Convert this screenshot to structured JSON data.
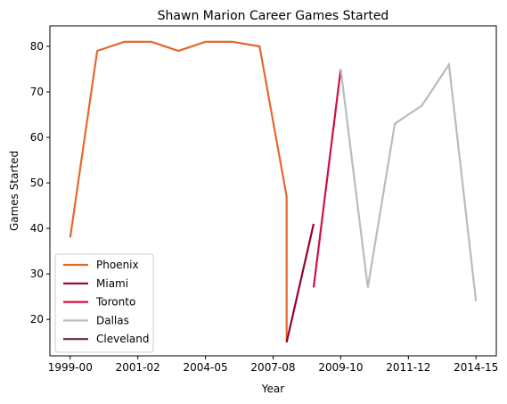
{
  "chart_data": {
    "type": "line",
    "title": "Shawn Marion Career Games Started",
    "xlabel": "Year",
    "ylabel": "Games Started",
    "xlim": [
      -0.75,
      15.75
    ],
    "ylim": [
      12,
      84.5
    ],
    "x_ticks": [
      {
        "x": 0,
        "label": "1999-00"
      },
      {
        "x": 2.5,
        "label": "2001-02"
      },
      {
        "x": 5,
        "label": "2004-05"
      },
      {
        "x": 7.5,
        "label": "2007-08"
      },
      {
        "x": 10,
        "label": "2009-10"
      },
      {
        "x": 12.5,
        "label": "2011-12"
      },
      {
        "x": 15,
        "label": "2014-15"
      }
    ],
    "y_ticks": [
      20,
      30,
      40,
      50,
      60,
      70,
      80
    ],
    "grid": false,
    "legend_position": "lower-left",
    "series": [
      {
        "name": "Phoenix",
        "color": "#E4692B",
        "points": [
          [
            0,
            38
          ],
          [
            1,
            79
          ],
          [
            2,
            81
          ],
          [
            3,
            81
          ],
          [
            4,
            79
          ],
          [
            5,
            81
          ],
          [
            6,
            81
          ],
          [
            7,
            80
          ],
          [
            8,
            47
          ],
          [
            8,
            15
          ]
        ]
      },
      {
        "name": "Miami",
        "color": "#98002E",
        "points": [
          [
            8,
            15
          ],
          [
            9,
            41
          ]
        ]
      },
      {
        "name": "Toronto",
        "color": "#CE1141",
        "points": [
          [
            9,
            27
          ],
          [
            10,
            75
          ]
        ]
      },
      {
        "name": "Dallas",
        "color": "#BBBBBB",
        "points": [
          [
            10,
            75
          ],
          [
            11,
            27
          ],
          [
            12,
            63
          ],
          [
            13,
            67
          ],
          [
            14,
            76
          ],
          [
            15,
            24
          ]
        ]
      },
      {
        "name": "Cleveland",
        "color": "#6F263D",
        "points": []
      }
    ]
  }
}
